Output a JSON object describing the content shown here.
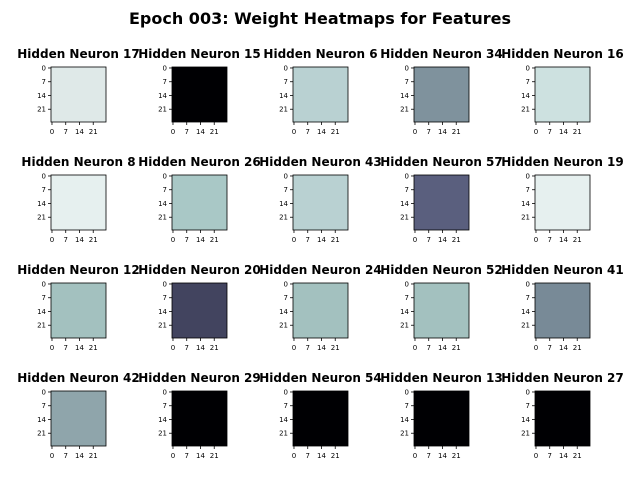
{
  "title": "Epoch 003: Weight Heatmaps for Features",
  "chart_data": {
    "type": "heatmap",
    "grid": {
      "rows": 4,
      "cols": 5
    },
    "image_size": 28,
    "ticks": [
      0,
      7,
      14,
      21
    ],
    "colormap": "bone",
    "panels": [
      {
        "title": "Hidden Neuron 17",
        "digit": "0",
        "shape": "wide",
        "bg": "#dfe9e8",
        "stroke": "#0d1522",
        "halo": "#ffffff"
      },
      {
        "title": "Hidden Neuron 15",
        "digit": "0",
        "shape": "inv",
        "bg": "#000003",
        "stroke": "#ffffff",
        "halo": "#8a9fb3"
      },
      {
        "title": "Hidden Neuron 6",
        "digit": "1",
        "shape": "one",
        "bg": "#b9d1d2",
        "stroke": "#0d1522",
        "halo": "#f2f7f7"
      },
      {
        "title": "Hidden Neuron 34",
        "digit": "0",
        "shape": "tall",
        "bg": "#7f929d",
        "stroke": "#0d1522",
        "halo": "#e6efef"
      },
      {
        "title": "Hidden Neuron 16",
        "digit": "0",
        "shape": "tall",
        "bg": "#cde1e0",
        "stroke": "#0d1522",
        "halo": "#ffffff"
      },
      {
        "title": "Hidden Neuron 8",
        "digit": "3",
        "shape": "three",
        "bg": "#e6f0ef",
        "stroke": "#0d1522",
        "halo": "#ffffff"
      },
      {
        "title": "Hidden Neuron 26",
        "digit": "0",
        "shape": "wide",
        "bg": "#a9c8c6",
        "stroke": "#0d1522",
        "halo": "#e6efef"
      },
      {
        "title": "Hidden Neuron 43",
        "digit": "4",
        "shape": "four",
        "bg": "#b9d1d2",
        "stroke": "#0d1522",
        "halo": "#e6efef"
      },
      {
        "title": "Hidden Neuron 57",
        "digit": "0",
        "shape": "tall",
        "bg": "#5a5f7e",
        "stroke": "#0d1522",
        "halo": "#c9dcdc"
      },
      {
        "title": "Hidden Neuron 19",
        "digit": "1",
        "shape": "one",
        "bg": "#e6f0ef",
        "stroke": "#0d1522",
        "halo": "#ffffff"
      },
      {
        "title": "Hidden Neuron 12",
        "digit": "0",
        "shape": "tall",
        "bg": "#a3c1bf",
        "stroke": "#0d1522",
        "halo": "#f2f7f7"
      },
      {
        "title": "Hidden Neuron 20",
        "digit": "0",
        "shape": "tall",
        "bg": "#42445f",
        "stroke": "#0d1522",
        "halo": "#b9cfd2"
      },
      {
        "title": "Hidden Neuron 24",
        "digit": "0",
        "shape": "tall",
        "bg": "#a3c1bf",
        "stroke": "#0d1522",
        "halo": "#e6efef"
      },
      {
        "title": "Hidden Neuron 52",
        "digit": "0",
        "shape": "wide",
        "bg": "#a3c1bf",
        "stroke": "#0d1522",
        "halo": "#ffffff"
      },
      {
        "title": "Hidden Neuron 41",
        "digit": "0",
        "shape": "tall",
        "bg": "#788a97",
        "stroke": "#0d1522",
        "halo": "#e6efef"
      },
      {
        "title": "Hidden Neuron 42",
        "digit": "1",
        "shape": "one",
        "bg": "#8fa5ab",
        "stroke": "#0d1522",
        "halo": "#ffffff"
      },
      {
        "title": "Hidden Neuron 29",
        "digit": "0",
        "shape": "inv",
        "bg": "#000003",
        "stroke": "#ffffff",
        "halo": "#7f93a8"
      },
      {
        "title": "Hidden Neuron 54",
        "digit": "0",
        "shape": "inv",
        "bg": "#000003",
        "stroke": "#ffffff",
        "halo": "#a5bfc4"
      },
      {
        "title": "Hidden Neuron 13",
        "digit": "0",
        "shape": "inv",
        "bg": "#000003",
        "stroke": "#ffffff",
        "halo": "#8a9fb3"
      },
      {
        "title": "Hidden Neuron 27",
        "digit": "0",
        "shape": "inv",
        "bg": "#000003",
        "stroke": "#ffffff",
        "halo": "#8a9fb3"
      }
    ]
  }
}
